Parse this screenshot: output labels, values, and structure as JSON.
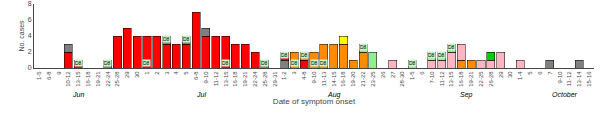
{
  "chart_data": {
    "type": "bar",
    "stacked": true,
    "grid": false,
    "xlabel": "Date of symptom onset",
    "ylabel": "No. cases",
    "ylim": [
      0,
      8
    ],
    "yticks": [
      0,
      2,
      4,
      6,
      8
    ],
    "categories": [
      "1-5",
      "6-8",
      "9",
      "10-12",
      "13-15",
      "16-18",
      "19-21",
      "22-24",
      "25-28",
      "29",
      "30",
      "1",
      "2",
      "3",
      "4",
      "5",
      "6-8",
      "9-10",
      "11-12",
      "13-15",
      "16-18",
      "19-21",
      "22-24",
      "25-28",
      "29-31",
      "1-2",
      "3",
      "4-8",
      "9-10",
      "11-13",
      "14-15",
      "16-18",
      "19-20",
      "21-22",
      "23-25",
      "26",
      "27",
      "28-30",
      "1-5",
      "6",
      "7-10",
      "11-12",
      "13-15",
      "16-18",
      "19-21",
      "22-25",
      "26-28",
      "29",
      "30",
      "1-4",
      "5",
      "6",
      "7",
      "9-10",
      "11-12",
      "13-14",
      "15-16"
    ],
    "series": [
      {
        "values": [
          null,
          null,
          null,
          2,
          1,
          null,
          null,
          1,
          4,
          5,
          4,
          4,
          4,
          3,
          3,
          3,
          7,
          4,
          4,
          4,
          3,
          3,
          2,
          1,
          null,
          1,
          1,
          1,
          2,
          3,
          3,
          3,
          1,
          2,
          2,
          null,
          1,
          null,
          1,
          null,
          1,
          1,
          2,
          1,
          1,
          1,
          1,
          2,
          null,
          1,
          null,
          null,
          1,
          null,
          null,
          1,
          null
        ],
        "colors": [
          null,
          null,
          null,
          "#ff0000",
          "#ff0000",
          null,
          null,
          "#808080",
          "#ff0000",
          "#ff0000",
          "#ff0000",
          "#ff0000",
          "#ff0000",
          "#ff0000",
          "#ff0000",
          "#ff0000",
          "#ff0000",
          "#ff0000",
          "#ff0000",
          "#ff0000",
          "#ff0000",
          "#ff0000",
          "#ff0000",
          "#808080",
          null,
          "#808080",
          "#ff8c00",
          "#ff0000",
          "#ff8c00",
          "#ff8c00",
          "#ff8c00",
          "#ff8c00",
          "#ff8c00",
          "#ff8c00",
          "#90ee90",
          null,
          "#ffb6c1",
          null,
          "#90ee90",
          null,
          "#ffb6c1",
          "#ffb6c1",
          "#ffb6c1",
          "#ff8c00",
          "#ff8c00",
          "#ffb6c1",
          "#ffb6c1",
          "#ffb6c1",
          null,
          "#ffb6c1",
          null,
          null,
          "#808080",
          null,
          null,
          "#808080",
          null
        ]
      },
      {
        "values": [
          null,
          null,
          null,
          1,
          null,
          null,
          null,
          null,
          null,
          null,
          null,
          null,
          null,
          1,
          null,
          1,
          null,
          1,
          null,
          null,
          null,
          null,
          null,
          null,
          null,
          1,
          1,
          1,
          null,
          null,
          null,
          1,
          null,
          1,
          null,
          null,
          null,
          null,
          null,
          null,
          1,
          1,
          1,
          2,
          null,
          null,
          1,
          null,
          null,
          null,
          null,
          null,
          null,
          null,
          null,
          null,
          null
        ],
        "colors": [
          null,
          null,
          null,
          "#808080",
          null,
          null,
          null,
          null,
          null,
          null,
          null,
          null,
          null,
          "#808080",
          null,
          "#808080",
          null,
          "#808080",
          null,
          null,
          null,
          null,
          null,
          null,
          null,
          "#ff0000",
          "#ff8c00",
          "#ff8c00",
          null,
          null,
          null,
          "#ffff00",
          null,
          "#90ee90",
          null,
          null,
          null,
          null,
          null,
          null,
          "#90ee90",
          "#90ee90",
          "#90ee90",
          "#ffb6c1",
          null,
          null,
          "#00cc00",
          null,
          null,
          null,
          null,
          null,
          null,
          null,
          null,
          null,
          null
        ]
      }
    ],
    "annotations": [
      {
        "text": "D8",
        "index": 4,
        "series": 0,
        "color": "#c8f5c8"
      },
      {
        "text": "D8",
        "index": 7,
        "series": 0,
        "color": "#c8f5c8"
      },
      {
        "text": "D8",
        "index": 11,
        "series": 0,
        "color": "#c8f5c8"
      },
      {
        "text": "D8",
        "index": 13,
        "series": 1,
        "color": "#c8f5c8"
      },
      {
        "text": "D8",
        "index": 15,
        "series": 1,
        "color": "#c8f5c8"
      },
      {
        "text": "D8",
        "index": 19,
        "series": 0,
        "color": "#c8f5c8"
      },
      {
        "text": "D8",
        "index": 23,
        "series": 0,
        "color": "#c8f5c8"
      },
      {
        "text": "D8",
        "index": 25,
        "series": 1,
        "color": "#c8f5c8"
      },
      {
        "text": "D8",
        "index": 26,
        "series": 0,
        "color": "#c8f5c8"
      },
      {
        "text": "D8",
        "index": 27,
        "series": 1,
        "color": "#c8f5c8"
      },
      {
        "text": "D8",
        "index": 28,
        "series": 0,
        "color": "#c8f5c8"
      },
      {
        "text": "D8",
        "index": 29,
        "series": 0,
        "color": "#c8f5c8"
      },
      {
        "text": "D8",
        "index": 33,
        "series": 1,
        "color": "#c8f5c8"
      },
      {
        "text": "D8",
        "index": 38,
        "series": 0,
        "color": "#c8f5c8"
      },
      {
        "text": "D8",
        "index": 40,
        "series": 1,
        "color": "#c8f5c8"
      },
      {
        "text": "D8",
        "index": 41,
        "series": 1,
        "color": "#c8f5c8"
      },
      {
        "text": "D8",
        "index": 42,
        "series": 1,
        "color": "#c8f5c8"
      },
      {
        "text": "Jun",
        "x": 4.0
      },
      {
        "text": "Jul",
        "x": 16.5
      },
      {
        "text": "Aug",
        "x": 30.0
      },
      {
        "text": "Sep",
        "x": 43.5
      },
      {
        "text": "October",
        "x": 53.5
      }
    ]
  }
}
